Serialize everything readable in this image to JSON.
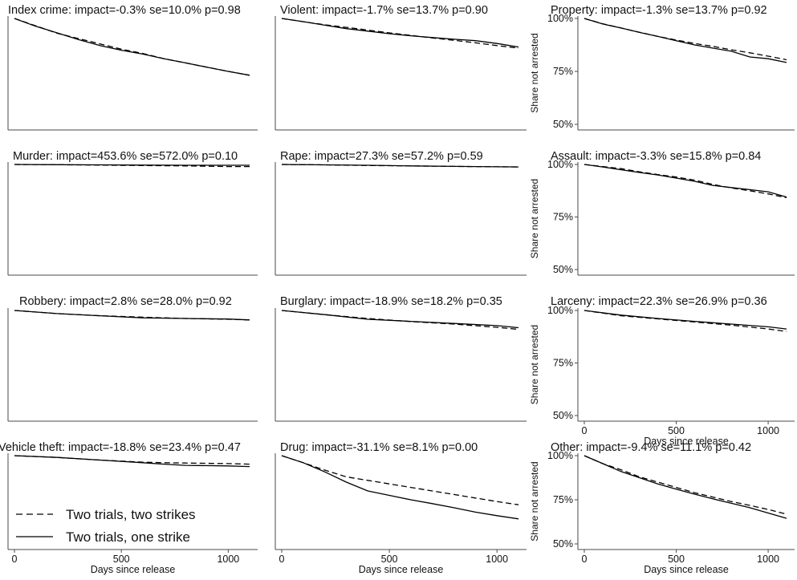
{
  "figure": {
    "legend": [
      {
        "label": "Two trials, two strikes",
        "style": "dashed"
      },
      {
        "label": "Two trials, one strike",
        "style": "solid"
      }
    ],
    "legend_placement": "inside bottom-left of the Vehicle theft panel",
    "line_color": "#000000",
    "axis_color": "#4a4a4a"
  },
  "chart_data": [
    {
      "type": "line",
      "title": "Index crime: impact=-0.3% se=10.0% p=0.98",
      "ylim": [
        0.5,
        1.0
      ],
      "xlim": [
        0,
        1100
      ],
      "show_ylabels": false,
      "show_xlabels": false,
      "xlabel": "",
      "ylabel": "",
      "xticks": [],
      "yticks": [],
      "series": [
        {
          "name": "Two trials, two strikes",
          "style": "dashed",
          "x": [
            0,
            100,
            200,
            300,
            400,
            500,
            600,
            700,
            800,
            900,
            1000,
            1100
          ],
          "y": [
            1.0,
            0.965,
            0.93,
            0.905,
            0.88,
            0.855,
            0.835,
            0.81,
            0.79,
            0.77,
            0.75,
            0.732
          ]
        },
        {
          "name": "Two trials, one strike",
          "style": "solid",
          "x": [
            0,
            100,
            200,
            300,
            400,
            500,
            600,
            700,
            800,
            900,
            1000,
            1100
          ],
          "y": [
            1.0,
            0.963,
            0.932,
            0.9,
            0.872,
            0.85,
            0.832,
            0.81,
            0.79,
            0.77,
            0.75,
            0.732
          ]
        }
      ]
    },
    {
      "type": "line",
      "title": "Violent: impact=-1.7% se=13.7% p=0.90",
      "ylim": [
        0.5,
        1.0
      ],
      "xlim": [
        0,
        1100
      ],
      "show_ylabels": false,
      "show_xlabels": false,
      "xlabel": "",
      "ylabel": "",
      "xticks": [],
      "yticks": [],
      "series": [
        {
          "name": "Two trials, two strikes",
          "style": "dashed",
          "x": [
            0,
            100,
            200,
            300,
            400,
            500,
            600,
            700,
            800,
            900,
            1000,
            1100
          ],
          "y": [
            1.0,
            0.985,
            0.97,
            0.958,
            0.945,
            0.932,
            0.92,
            0.908,
            0.897,
            0.885,
            0.872,
            0.86
          ]
        },
        {
          "name": "Two trials, one strike",
          "style": "solid",
          "x": [
            0,
            100,
            200,
            300,
            400,
            500,
            600,
            700,
            800,
            900,
            1000,
            1100
          ],
          "y": [
            1.0,
            0.985,
            0.968,
            0.952,
            0.94,
            0.928,
            0.918,
            0.91,
            0.902,
            0.895,
            0.882,
            0.865
          ]
        }
      ]
    },
    {
      "type": "line",
      "title": "Property: impact=-1.3% se=13.7% p=0.92",
      "ylim": [
        0.5,
        1.0
      ],
      "xlim": [
        0,
        1100
      ],
      "show_ylabels": true,
      "show_xlabels": false,
      "xlabel": "",
      "ylabel": "Share not arrested",
      "xticks": [],
      "yticks": [
        {
          "value": 1.0,
          "label": "100%"
        },
        {
          "value": 0.75,
          "label": "75%"
        },
        {
          "value": 0.5,
          "label": "50%"
        }
      ],
      "series": [
        {
          "name": "Two trials, two strikes",
          "style": "dashed",
          "x": [
            0,
            100,
            200,
            300,
            400,
            500,
            600,
            700,
            800,
            900,
            1000,
            1100
          ],
          "y": [
            1.0,
            0.975,
            0.955,
            0.935,
            0.915,
            0.898,
            0.882,
            0.868,
            0.852,
            0.838,
            0.822,
            0.805
          ]
        },
        {
          "name": "Two trials, one strike",
          "style": "solid",
          "x": [
            0,
            100,
            200,
            300,
            400,
            500,
            600,
            700,
            800,
            900,
            1000,
            1100
          ],
          "y": [
            1.0,
            0.974,
            0.955,
            0.934,
            0.915,
            0.895,
            0.875,
            0.86,
            0.845,
            0.818,
            0.81,
            0.792
          ]
        }
      ]
    },
    {
      "type": "line",
      "title": "Murder: impact=453.6% se=572.0% p=0.10",
      "ylim": [
        0.5,
        1.0
      ],
      "xlim": [
        0,
        1100
      ],
      "show_ylabels": false,
      "show_xlabels": false,
      "xlabel": "",
      "ylabel": "",
      "xticks": [],
      "yticks": [],
      "series": [
        {
          "name": "Two trials, two strikes",
          "style": "dashed",
          "x": [
            0,
            200,
            400,
            600,
            800,
            1000,
            1100
          ],
          "y": [
            1.0,
            0.999,
            0.997,
            0.995,
            0.993,
            0.99,
            0.99
          ]
        },
        {
          "name": "Two trials, one strike",
          "style": "solid",
          "x": [
            0,
            200,
            400,
            600,
            800,
            1000,
            1100
          ],
          "y": [
            1.0,
            0.999,
            0.998,
            0.997,
            0.996,
            0.996,
            0.996
          ]
        }
      ]
    },
    {
      "type": "line",
      "title": "Rape: impact=27.3% se=57.2% p=0.59",
      "ylim": [
        0.5,
        1.0
      ],
      "xlim": [
        0,
        1100
      ],
      "show_ylabels": false,
      "show_xlabels": false,
      "xlabel": "",
      "ylabel": "",
      "xticks": [],
      "yticks": [],
      "series": [
        {
          "name": "Two trials, two strikes",
          "style": "dashed",
          "x": [
            0,
            200,
            400,
            600,
            800,
            1000,
            1100
          ],
          "y": [
            1.0,
            0.998,
            0.995,
            0.993,
            0.991,
            0.989,
            0.988
          ]
        },
        {
          "name": "Two trials, one strike",
          "style": "solid",
          "x": [
            0,
            200,
            400,
            600,
            800,
            1000,
            1100
          ],
          "y": [
            1.0,
            0.998,
            0.996,
            0.993,
            0.991,
            0.989,
            0.988
          ]
        }
      ]
    },
    {
      "type": "line",
      "title": "Assault: impact=-3.3% se=15.8% p=0.84",
      "ylim": [
        0.5,
        1.0
      ],
      "xlim": [
        0,
        1100
      ],
      "show_ylabels": true,
      "show_xlabels": false,
      "xlabel": "",
      "ylabel": "Share not arrested",
      "xticks": [],
      "yticks": [
        {
          "value": 1.0,
          "label": "100%"
        },
        {
          "value": 0.75,
          "label": "75%"
        },
        {
          "value": 0.5,
          "label": "50%"
        }
      ],
      "series": [
        {
          "name": "Two trials, two strikes",
          "style": "dashed",
          "x": [
            0,
            100,
            200,
            300,
            400,
            500,
            600,
            700,
            800,
            900,
            1000,
            1100
          ],
          "y": [
            1.0,
            0.99,
            0.98,
            0.965,
            0.952,
            0.94,
            0.925,
            0.905,
            0.888,
            0.875,
            0.86,
            0.842
          ]
        },
        {
          "name": "Two trials, one strike",
          "style": "solid",
          "x": [
            0,
            100,
            200,
            300,
            400,
            500,
            600,
            700,
            800,
            900,
            1000,
            1100
          ],
          "y": [
            1.0,
            0.988,
            0.975,
            0.962,
            0.95,
            0.935,
            0.92,
            0.9,
            0.89,
            0.88,
            0.87,
            0.845
          ]
        }
      ]
    },
    {
      "type": "line",
      "title": "Robbery: impact=2.8% se=28.0% p=0.92",
      "ylim": [
        0.5,
        1.0
      ],
      "xlim": [
        0,
        1100
      ],
      "show_ylabels": false,
      "show_xlabels": false,
      "xlabel": "",
      "ylabel": "",
      "xticks": [],
      "yticks": [],
      "series": [
        {
          "name": "Two trials, two strikes",
          "style": "dashed",
          "x": [
            0,
            200,
            400,
            600,
            800,
            1000,
            1100
          ],
          "y": [
            1.0,
            0.985,
            0.975,
            0.968,
            0.962,
            0.958,
            0.955
          ]
        },
        {
          "name": "Two trials, one strike",
          "style": "solid",
          "x": [
            0,
            200,
            400,
            600,
            800,
            1000,
            1100
          ],
          "y": [
            1.0,
            0.985,
            0.975,
            0.965,
            0.962,
            0.959,
            0.955
          ]
        }
      ]
    },
    {
      "type": "line",
      "title": "Burglary: impact=-18.9% se=18.2% p=0.35",
      "ylim": [
        0.5,
        1.0
      ],
      "xlim": [
        0,
        1100
      ],
      "show_ylabels": false,
      "show_xlabels": false,
      "xlabel": "",
      "ylabel": "",
      "xticks": [],
      "yticks": [],
      "series": [
        {
          "name": "Two trials, two strikes",
          "style": "dashed",
          "x": [
            0,
            200,
            400,
            600,
            800,
            1000,
            1100
          ],
          "y": [
            1.0,
            0.98,
            0.962,
            0.947,
            0.935,
            0.92,
            0.91
          ]
        },
        {
          "name": "Two trials, one strike",
          "style": "solid",
          "x": [
            0,
            200,
            400,
            600,
            800,
            1000,
            1100
          ],
          "y": [
            1.0,
            0.98,
            0.958,
            0.948,
            0.938,
            0.928,
            0.918
          ]
        }
      ]
    },
    {
      "type": "line",
      "title": "Larceny: impact=22.3% se=26.9% p=0.36",
      "ylim": [
        0.5,
        1.0
      ],
      "xlim": [
        0,
        1100
      ],
      "show_ylabels": true,
      "show_xlabels": false,
      "xlabel": "Days since release",
      "ylabel": "Share not arrested",
      "xticks": [
        {
          "value": 0,
          "label": "0"
        },
        {
          "value": 500,
          "label": "500"
        },
        {
          "value": 1000,
          "label": "1000"
        }
      ],
      "yticks": [
        {
          "value": 1.0,
          "label": "100%"
        },
        {
          "value": 0.75,
          "label": "75%"
        },
        {
          "value": 0.5,
          "label": "50%"
        }
      ],
      "series": [
        {
          "name": "Two trials, two strikes",
          "style": "dashed",
          "x": [
            0,
            200,
            400,
            600,
            800,
            1000,
            1100
          ],
          "y": [
            1.0,
            0.975,
            0.96,
            0.945,
            0.93,
            0.912,
            0.9
          ]
        },
        {
          "name": "Two trials, one strike",
          "style": "solid",
          "x": [
            0,
            200,
            400,
            600,
            800,
            1000,
            1100
          ],
          "y": [
            1.0,
            0.978,
            0.962,
            0.948,
            0.935,
            0.922,
            0.912
          ]
        }
      ]
    },
    {
      "type": "line",
      "title": "Vehicle theft: impact=-18.8% se=23.4% p=0.47",
      "ylim": [
        0.5,
        1.0
      ],
      "xlim": [
        0,
        1100
      ],
      "show_ylabels": false,
      "show_xlabels": true,
      "xlabel": "Days since release",
      "ylabel": "",
      "xticks": [
        {
          "value": 0,
          "label": "0"
        },
        {
          "value": 500,
          "label": "500"
        },
        {
          "value": 1000,
          "label": "1000"
        }
      ],
      "yticks": [],
      "series": [
        {
          "name": "Two trials, two strikes",
          "style": "dashed",
          "x": [
            0,
            200,
            400,
            600,
            700,
            800,
            1000,
            1100
          ],
          "y": [
            1.0,
            0.99,
            0.975,
            0.963,
            0.96,
            0.958,
            0.955,
            0.952
          ]
        },
        {
          "name": "Two trials, one strike",
          "style": "solid",
          "x": [
            0,
            200,
            400,
            600,
            700,
            800,
            1000,
            1100
          ],
          "y": [
            1.0,
            0.99,
            0.975,
            0.96,
            0.952,
            0.945,
            0.942,
            0.938
          ]
        }
      ]
    },
    {
      "type": "line",
      "title": "Drug: impact=-31.1% se=8.1% p=0.00",
      "ylim": [
        0.5,
        1.0
      ],
      "xlim": [
        0,
        1100
      ],
      "show_ylabels": false,
      "show_xlabels": true,
      "xlabel": "Days since release",
      "ylabel": "",
      "xticks": [
        {
          "value": 0,
          "label": "0"
        },
        {
          "value": 500,
          "label": "500"
        },
        {
          "value": 1000,
          "label": "1000"
        }
      ],
      "yticks": [],
      "series": [
        {
          "name": "Two trials, two strikes",
          "style": "dashed",
          "x": [
            0,
            100,
            200,
            300,
            400,
            500,
            600,
            700,
            800,
            900,
            1000,
            1100
          ],
          "y": [
            1.0,
            0.96,
            0.918,
            0.88,
            0.86,
            0.84,
            0.82,
            0.8,
            0.78,
            0.76,
            0.74,
            0.722
          ]
        },
        {
          "name": "Two trials, one strike",
          "style": "solid",
          "x": [
            0,
            100,
            200,
            300,
            400,
            500,
            600,
            700,
            800,
            900,
            1000,
            1100
          ],
          "y": [
            1.0,
            0.96,
            0.908,
            0.85,
            0.8,
            0.775,
            0.75,
            0.728,
            0.705,
            0.68,
            0.66,
            0.642
          ]
        }
      ]
    },
    {
      "type": "line",
      "title": "Other: impact=-9.4% se=11.1% p=0.42",
      "ylim": [
        0.5,
        1.0
      ],
      "xlim": [
        0,
        1100
      ],
      "show_ylabels": true,
      "show_xlabels": true,
      "xlabel": "Days since release",
      "ylabel": "Share not arrested",
      "xticks": [
        {
          "value": 0,
          "label": "0"
        },
        {
          "value": 500,
          "label": "500"
        },
        {
          "value": 1000,
          "label": "1000"
        }
      ],
      "yticks": [
        {
          "value": 1.0,
          "label": "100%"
        },
        {
          "value": 0.75,
          "label": "75%"
        },
        {
          "value": 0.5,
          "label": "50%"
        }
      ],
      "series": [
        {
          "name": "Two trials, two strikes",
          "style": "dashed",
          "x": [
            0,
            100,
            200,
            300,
            400,
            500,
            600,
            700,
            800,
            900,
            1000,
            1100
          ],
          "y": [
            1.0,
            0.955,
            0.92,
            0.88,
            0.85,
            0.82,
            0.79,
            0.765,
            0.74,
            0.718,
            0.695,
            0.668
          ]
        },
        {
          "name": "Two trials, one strike",
          "style": "solid",
          "x": [
            0,
            100,
            200,
            300,
            400,
            500,
            600,
            700,
            800,
            900,
            1000,
            1100
          ],
          "y": [
            1.0,
            0.955,
            0.91,
            0.875,
            0.84,
            0.81,
            0.782,
            0.755,
            0.73,
            0.705,
            0.675,
            0.645
          ]
        }
      ]
    }
  ]
}
